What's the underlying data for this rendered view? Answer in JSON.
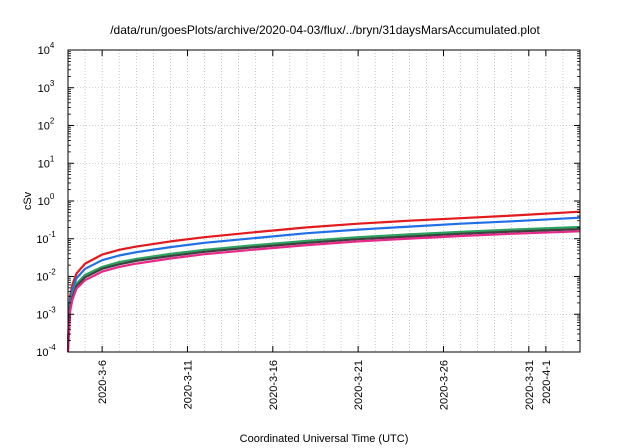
{
  "chart_data": {
    "type": "line",
    "title": "/data/run/goesPlots/archive/2020-04-03/flux/../bryn/31daysMarsAccumulated.plot",
    "xlabel": "Coordinated Universal Time (UTC)",
    "ylabel": "cSv",
    "y_scale": "log",
    "ylim": [
      0.0001,
      10000
    ],
    "xlim": [
      "2020-03-04",
      "2020-04-03"
    ],
    "grid": true,
    "y_ticks": [
      {
        "base": "10",
        "exp": "-4",
        "value": 0.0001
      },
      {
        "base": "10",
        "exp": "-3",
        "value": 0.001
      },
      {
        "base": "10",
        "exp": "-2",
        "value": 0.01
      },
      {
        "base": "10",
        "exp": "-1",
        "value": 0.1
      },
      {
        "base": "10",
        "exp": "0",
        "value": 1
      },
      {
        "base": "10",
        "exp": "1",
        "value": 10
      },
      {
        "base": "10",
        "exp": "2",
        "value": 100
      },
      {
        "base": "10",
        "exp": "3",
        "value": 1000
      },
      {
        "base": "10",
        "exp": "4",
        "value": 10000
      }
    ],
    "x_ticks": [
      {
        "label": "2020-3-6",
        "date": "2020-03-06"
      },
      {
        "label": "2020-3-11",
        "date": "2020-03-11"
      },
      {
        "label": "2020-3-16",
        "date": "2020-03-16"
      },
      {
        "label": "2020-3-21",
        "date": "2020-03-21"
      },
      {
        "label": "2020-3-26",
        "date": "2020-03-26"
      },
      {
        "label": "2020-3-31",
        "date": "2020-03-31"
      },
      {
        "label": "2020-4-1",
        "date": "2020-04-01"
      }
    ],
    "series": [
      {
        "color": "#e31a1c",
        "x": [
          "2020-03-04",
          "2020-03-04T03:00",
          "2020-03-04T06:00",
          "2020-03-04T12:00",
          "2020-03-05",
          "2020-03-06",
          "2020-03-07",
          "2020-03-08",
          "2020-03-10",
          "2020-03-12",
          "2020-03-15",
          "2020-03-18",
          "2020-03-21",
          "2020-03-24",
          "2020-03-27",
          "2020-03-30",
          "2020-04-03"
        ],
        "y": [
          0.0002,
          0.003,
          0.006,
          0.012,
          0.022,
          0.038,
          0.051,
          0.062,
          0.085,
          0.11,
          0.15,
          0.2,
          0.25,
          0.3,
          0.35,
          0.41,
          0.52
        ]
      },
      {
        "color": "#1f6fe6",
        "x": [
          "2020-03-04",
          "2020-03-04T03:00",
          "2020-03-04T06:00",
          "2020-03-04T12:00",
          "2020-03-05",
          "2020-03-06",
          "2020-03-07",
          "2020-03-08",
          "2020-03-10",
          "2020-03-12",
          "2020-03-15",
          "2020-03-18",
          "2020-03-21",
          "2020-03-24",
          "2020-03-27",
          "2020-03-30",
          "2020-04-03"
        ],
        "y": [
          0.00015,
          0.0022,
          0.0045,
          0.009,
          0.016,
          0.027,
          0.036,
          0.044,
          0.06,
          0.078,
          0.105,
          0.14,
          0.175,
          0.21,
          0.25,
          0.29,
          0.36
        ]
      },
      {
        "color": "#2ca25f",
        "x": [
          "2020-03-04",
          "2020-03-04T03:00",
          "2020-03-04T06:00",
          "2020-03-04T12:00",
          "2020-03-05",
          "2020-03-06",
          "2020-03-07",
          "2020-03-08",
          "2020-03-10",
          "2020-03-12",
          "2020-03-15",
          "2020-03-18",
          "2020-03-21",
          "2020-03-24",
          "2020-03-27",
          "2020-03-30",
          "2020-04-03"
        ],
        "y": [
          0.00012,
          0.0016,
          0.0032,
          0.0065,
          0.011,
          0.018,
          0.024,
          0.029,
          0.04,
          0.051,
          0.068,
          0.088,
          0.11,
          0.13,
          0.152,
          0.175,
          0.205
        ]
      },
      {
        "color": "#404040",
        "x": [
          "2020-03-04",
          "2020-03-04T03:00",
          "2020-03-04T06:00",
          "2020-03-04T12:00",
          "2020-03-05",
          "2020-03-06",
          "2020-03-07",
          "2020-03-08",
          "2020-03-10",
          "2020-03-12",
          "2020-03-15",
          "2020-03-18",
          "2020-03-21",
          "2020-03-24",
          "2020-03-27",
          "2020-03-30",
          "2020-04-03"
        ],
        "y": [
          0.00011,
          0.0014,
          0.0028,
          0.0056,
          0.0095,
          0.016,
          0.021,
          0.026,
          0.035,
          0.045,
          0.06,
          0.078,
          0.097,
          0.115,
          0.135,
          0.155,
          0.18
        ]
      },
      {
        "color": "#e7298a",
        "x": [
          "2020-03-04",
          "2020-03-04T03:00",
          "2020-03-04T06:00",
          "2020-03-04T12:00",
          "2020-03-05",
          "2020-03-06",
          "2020-03-07",
          "2020-03-08",
          "2020-03-10",
          "2020-03-12",
          "2020-03-15",
          "2020-03-18",
          "2020-03-21",
          "2020-03-24",
          "2020-03-27",
          "2020-03-30",
          "2020-04-03"
        ],
        "y": [
          0.0001,
          0.0012,
          0.0024,
          0.0048,
          0.008,
          0.0135,
          0.018,
          0.022,
          0.03,
          0.039,
          0.052,
          0.068,
          0.085,
          0.101,
          0.118,
          0.135,
          0.158
        ]
      }
    ]
  }
}
